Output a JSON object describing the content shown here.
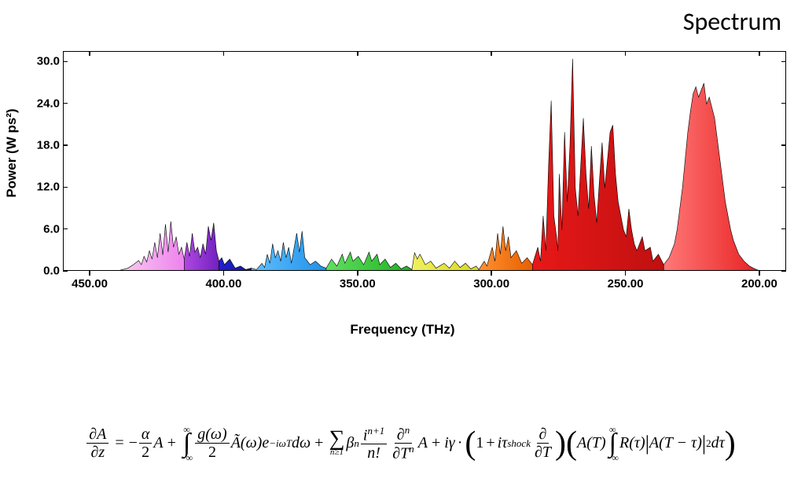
{
  "title": "Spectrum",
  "chart": {
    "type": "area-spectrum",
    "background_color": "#ffffff",
    "border_color": "#000000",
    "title_fontsize": 32,
    "label_fontsize": 17,
    "tick_fontsize": 15,
    "x_axis": {
      "label": "Frequency (THz)",
      "reversed": true,
      "min": 190,
      "max": 460,
      "ticks": [
        450,
        400,
        350,
        300,
        250,
        200
      ],
      "tick_labels": [
        "450.00",
        "400.00",
        "350.00",
        "300.00",
        "250.00",
        "200.00"
      ]
    },
    "y_axis": {
      "label": "Power (W ps²)",
      "min": 0,
      "max": 31.5,
      "ticks": [
        0,
        6,
        12,
        18,
        24,
        30
      ],
      "tick_labels": [
        "0.0",
        "6.0",
        "12.0",
        "18.0",
        "24.0",
        "30.0"
      ]
    },
    "segments": [
      {
        "name": "violet1",
        "color_start": "#f8d0f0",
        "color_end": "#ee82ee",
        "x_range": [
          440,
          415
        ],
        "points": [
          [
            440,
            0.1
          ],
          [
            438,
            0.3
          ],
          [
            436,
            0.5
          ],
          [
            434,
            1.0
          ],
          [
            432,
            1.6
          ],
          [
            431,
            1.0
          ],
          [
            430,
            2.2
          ],
          [
            429,
            1.4
          ],
          [
            428,
            3.0
          ],
          [
            427,
            1.8
          ],
          [
            426,
            4.2
          ],
          [
            425,
            2.0
          ],
          [
            424,
            5.5
          ],
          [
            423,
            2.4
          ],
          [
            422,
            6.8
          ],
          [
            421,
            2.8
          ],
          [
            420,
            7.2
          ],
          [
            419,
            3.5
          ],
          [
            418,
            5.0
          ],
          [
            417,
            2.5
          ],
          [
            416,
            3.5
          ],
          [
            415,
            1.8
          ]
        ]
      },
      {
        "name": "violet2",
        "color_start": "#b048e0",
        "color_end": "#7020c0",
        "x_range": [
          415,
          402
        ],
        "points": [
          [
            415,
            1.8
          ],
          [
            414,
            4.2
          ],
          [
            413,
            2.2
          ],
          [
            412,
            5.5
          ],
          [
            411,
            2.8
          ],
          [
            410,
            3.5
          ],
          [
            409,
            2.0
          ],
          [
            408,
            4.0
          ],
          [
            407,
            2.5
          ],
          [
            406,
            6.5
          ],
          [
            405,
            4.5
          ],
          [
            404,
            7.0
          ],
          [
            403,
            3.0
          ],
          [
            402,
            1.5
          ]
        ]
      },
      {
        "name": "blue1",
        "color_start": "#2020d0",
        "color_end": "#1818a0",
        "x_range": [
          402,
          390
        ],
        "points": [
          [
            402,
            1.5
          ],
          [
            401,
            2.0
          ],
          [
            400,
            1.0
          ],
          [
            398,
            1.8
          ],
          [
            396,
            0.5
          ],
          [
            394,
            0.8
          ],
          [
            392,
            0.3
          ],
          [
            390,
            0.5
          ]
        ]
      },
      {
        "name": "lightblue",
        "color_start": "#60c0ff",
        "color_end": "#2090e8",
        "x_range": [
          390,
          362
        ],
        "points": [
          [
            390,
            0.5
          ],
          [
            388,
            0.3
          ],
          [
            386,
            1.2
          ],
          [
            385,
            0.6
          ],
          [
            384,
            2.5
          ],
          [
            383,
            1.2
          ],
          [
            382,
            4.0
          ],
          [
            381,
            2.0
          ],
          [
            380,
            3.0
          ],
          [
            379,
            1.5
          ],
          [
            378,
            4.2
          ],
          [
            377,
            2.0
          ],
          [
            376,
            3.5
          ],
          [
            375,
            1.2
          ],
          [
            373,
            5.5
          ],
          [
            372,
            2.8
          ],
          [
            371,
            5.8
          ],
          [
            370,
            2.0
          ],
          [
            368,
            1.0
          ],
          [
            366,
            1.5
          ],
          [
            364,
            0.8
          ],
          [
            362,
            0.5
          ]
        ]
      },
      {
        "name": "green",
        "color_start": "#60e060",
        "color_end": "#20b020",
        "x_range": [
          362,
          330
        ],
        "points": [
          [
            362,
            0.5
          ],
          [
            360,
            1.8
          ],
          [
            358,
            0.8
          ],
          [
            356,
            2.5
          ],
          [
            355,
            1.2
          ],
          [
            353,
            2.8
          ],
          [
            352,
            1.5
          ],
          [
            350,
            2.2
          ],
          [
            348,
            1.0
          ],
          [
            346,
            2.8
          ],
          [
            345,
            1.5
          ],
          [
            343,
            2.5
          ],
          [
            342,
            1.0
          ],
          [
            340,
            1.8
          ],
          [
            338,
            0.6
          ],
          [
            336,
            1.2
          ],
          [
            334,
            0.4
          ],
          [
            332,
            0.8
          ],
          [
            330,
            0.3
          ]
        ]
      },
      {
        "name": "yellow",
        "color_start": "#f0f060",
        "color_end": "#d8d820",
        "x_range": [
          330,
          305
        ],
        "points": [
          [
            330,
            0.3
          ],
          [
            329,
            2.7
          ],
          [
            328,
            1.8
          ],
          [
            327,
            2.5
          ],
          [
            325,
            1.0
          ],
          [
            323,
            1.5
          ],
          [
            321,
            0.5
          ],
          [
            318,
            1.2
          ],
          [
            316,
            0.5
          ],
          [
            314,
            1.5
          ],
          [
            312,
            0.6
          ],
          [
            310,
            1.2
          ],
          [
            308,
            0.4
          ],
          [
            306,
            0.8
          ],
          [
            305,
            0.3
          ]
        ]
      },
      {
        "name": "orange",
        "color_start": "#ff9030",
        "color_end": "#e86000",
        "x_range": [
          305,
          285
        ],
        "points": [
          [
            305,
            0.3
          ],
          [
            303,
            1.5
          ],
          [
            302,
            0.8
          ],
          [
            300,
            3.5
          ],
          [
            299,
            1.5
          ],
          [
            298,
            5.5
          ],
          [
            297,
            2.5
          ],
          [
            296,
            6.5
          ],
          [
            295,
            3.0
          ],
          [
            294,
            5.0
          ],
          [
            293,
            2.0
          ],
          [
            291,
            3.0
          ],
          [
            289,
            1.2
          ],
          [
            287,
            2.0
          ],
          [
            285,
            1.0
          ]
        ]
      },
      {
        "name": "red1",
        "color_start": "#e81818",
        "color_end": "#c01010",
        "x_range": [
          285,
          236
        ],
        "points": [
          [
            285,
            1.0
          ],
          [
            283,
            3.5
          ],
          [
            282,
            1.5
          ],
          [
            281,
            8.0
          ],
          [
            280,
            3.0
          ],
          [
            279,
            15.0
          ],
          [
            278,
            24.5
          ],
          [
            277,
            8.0
          ],
          [
            276,
            5.0
          ],
          [
            275.5,
            3.0
          ],
          [
            275,
            14.0
          ],
          [
            274,
            6.0
          ],
          [
            273,
            20.0
          ],
          [
            272,
            10.0
          ],
          [
            271,
            18.0
          ],
          [
            270,
            30.5
          ],
          [
            269,
            12.0
          ],
          [
            268,
            8.0
          ],
          [
            267,
            15.0
          ],
          [
            266,
            22.0
          ],
          [
            265,
            14.0
          ],
          [
            264,
            9.0
          ],
          [
            263,
            18.0
          ],
          [
            262,
            11.0
          ],
          [
            261,
            7.0
          ],
          [
            260,
            13.0
          ],
          [
            259,
            18.5
          ],
          [
            258,
            12.0
          ],
          [
            257,
            16.0
          ],
          [
            256,
            20.0
          ],
          [
            255,
            21.0
          ],
          [
            254,
            14.0
          ],
          [
            253,
            10.0
          ],
          [
            252,
            8.0
          ],
          [
            251,
            6.0
          ],
          [
            250,
            5.0
          ],
          [
            249,
            9.0
          ],
          [
            248,
            6.0
          ],
          [
            247,
            4.0
          ],
          [
            246,
            3.0
          ],
          [
            244,
            5.0
          ],
          [
            243,
            3.0
          ],
          [
            241,
            3.5
          ],
          [
            240,
            1.5
          ],
          [
            238,
            2.5
          ],
          [
            236,
            1.0
          ]
        ]
      },
      {
        "name": "red2",
        "color_start": "#ff7878",
        "color_end": "#e82020",
        "x_range": [
          236,
          200
        ],
        "points": [
          [
            236,
            1.0
          ],
          [
            234,
            2.0
          ],
          [
            232,
            4.0
          ],
          [
            231,
            6.0
          ],
          [
            230,
            9.0
          ],
          [
            229,
            12.0
          ],
          [
            228,
            16.0
          ],
          [
            227,
            20.0
          ],
          [
            226,
            23.0
          ],
          [
            225,
            25.5
          ],
          [
            224,
            26.5
          ],
          [
            223,
            25.0
          ],
          [
            222,
            26.0
          ],
          [
            221,
            27.0
          ],
          [
            220,
            24.0
          ],
          [
            219,
            25.0
          ],
          [
            218,
            23.5
          ],
          [
            217,
            22.0
          ],
          [
            216,
            19.0
          ],
          [
            215,
            16.0
          ],
          [
            214,
            13.0
          ],
          [
            213,
            10.0
          ],
          [
            212,
            8.0
          ],
          [
            211,
            6.0
          ],
          [
            210,
            4.5
          ],
          [
            209,
            3.5
          ],
          [
            208,
            2.5
          ],
          [
            206,
            1.5
          ],
          [
            204,
            0.8
          ],
          [
            202,
            0.4
          ],
          [
            200,
            0.1
          ]
        ]
      }
    ]
  },
  "equation_parts": {
    "dA": "∂A",
    "dz": "∂z",
    "eq": "=",
    "minus": "−",
    "alpha": "α",
    "two": "2",
    "A": "A",
    "plus": "+",
    "g_omega": "g(ω)",
    "A_tilde": "Ã(ω)",
    "e": "e",
    "exp_iw": "−iωT",
    "domega": "dω",
    "beta_n": "β",
    "n": "n",
    "i": "i",
    "np1": "n+1",
    "nfact": "n!",
    "dn": "∂",
    "Tn": "∂T",
    "igamma": "iγ",
    "dot": "·",
    "one": "1",
    "tau_shock": "iτ",
    "shock": "shock",
    "dT": "∂T",
    "d": "∂",
    "AT": "A(T)",
    "R_tau": "R(τ)",
    "ATt": "A(T − τ)",
    "sq": "2",
    "dtau": "dτ",
    "inf": "∞",
    "ninf": "−∞",
    "nge1": "n≥1",
    "bar": "|"
  }
}
